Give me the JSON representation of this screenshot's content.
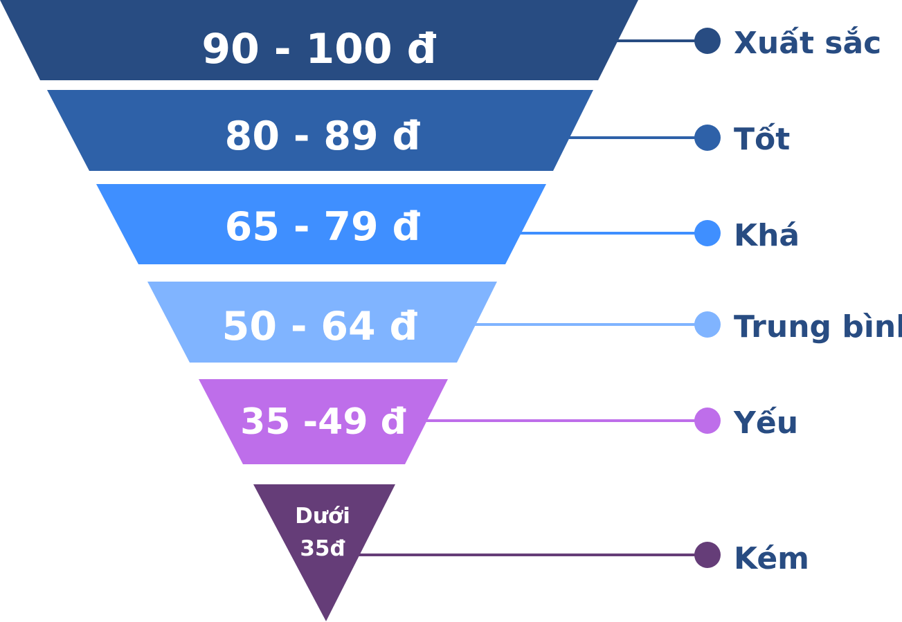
{
  "tiers": [
    {
      "range": "90 - 100 đ",
      "label": "Xuất sắc",
      "color": "#284C82"
    },
    {
      "range": "80 - 89 đ",
      "label": "Tốt",
      "color": "#2E61A8"
    },
    {
      "range": "65 - 79 đ",
      "label": "Khá",
      "color": "#3F8FFF"
    },
    {
      "range": "50 - 64 đ",
      "label": "Trung bình",
      "color": "#80B4FF"
    },
    {
      "range": "35 -49 đ",
      "label": "Yếu",
      "color": "#BE6EEA"
    },
    {
      "range_lines": [
        "Dưới",
        "35đ"
      ],
      "label": "Kém",
      "color": "#653D78"
    }
  ],
  "label_color": "#284C82"
}
